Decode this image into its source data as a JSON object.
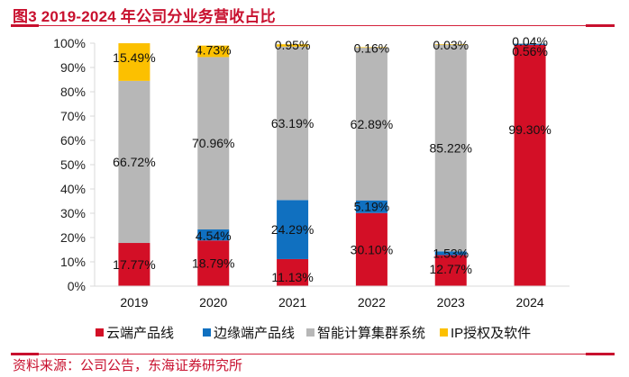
{
  "header": {
    "title": "图3  2019-2024 年公司分业务营收占比"
  },
  "footer": {
    "source": "资料来源：公司公告，东海证券研究所"
  },
  "chart_data": {
    "type": "bar",
    "stacked": true,
    "title": "图3  2019-2024 年公司分业务营收占比",
    "xlabel": "",
    "ylabel": "",
    "ylim": [
      0,
      100
    ],
    "yticks": [
      "0%",
      "10%",
      "20%",
      "30%",
      "40%",
      "50%",
      "60%",
      "70%",
      "80%",
      "90%",
      "100%"
    ],
    "grid": false,
    "legend_position": "bottom",
    "categories": [
      "2019",
      "2020",
      "2021",
      "2022",
      "2023",
      "2024"
    ],
    "series": [
      {
        "name": "云端产品线",
        "color": "#d30f26",
        "values": [
          17.77,
          18.79,
          11.13,
          30.1,
          12.77,
          99.3
        ],
        "labels": [
          "17.77%",
          "18.79%",
          "11.13%",
          "30.10%",
          "12.77%",
          "99.30%"
        ]
      },
      {
        "name": "边缘端产品线",
        "color": "#1070c0",
        "values": [
          0,
          4.54,
          24.29,
          5.19,
          1.53,
          0.56
        ],
        "labels": [
          "",
          "4.54%",
          "24.29%",
          "5.19%",
          "1.53%",
          "0.56%"
        ]
      },
      {
        "name": "智能计算集群系统",
        "color": "#b7b7b7",
        "values": [
          66.72,
          70.96,
          63.19,
          62.89,
          85.22,
          0.04
        ],
        "labels": [
          "66.72%",
          "70.96%",
          "63.19%",
          "62.89%",
          "85.22%",
          "0.04%"
        ]
      },
      {
        "name": "IP授权及软件",
        "color": "#fcc000",
        "values": [
          15.49,
          4.73,
          0.95,
          0.16,
          0.03,
          0
        ],
        "labels": [
          "15.49%",
          "4.73%",
          "0.95%",
          "0.16%",
          "0.03%",
          ""
        ]
      }
    ]
  }
}
